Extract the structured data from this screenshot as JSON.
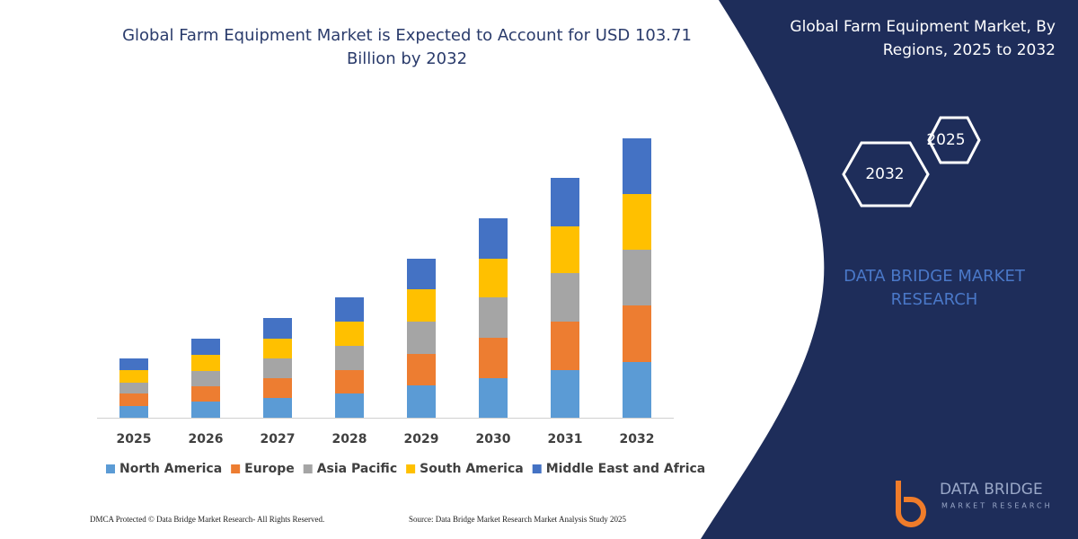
{
  "chart_data": {
    "type": "stacked-bar",
    "title": "Global Farm Equipment Market is Expected to Account for USD 103.71 Billion by 2032",
    "categories": [
      "2025",
      "2026",
      "2027",
      "2028",
      "2029",
      "2030",
      "2031",
      "2032"
    ],
    "series": [
      {
        "name": "North America",
        "color": "#5b9bd5",
        "values": [
          13,
          18,
          22,
          27,
          36,
          44,
          53,
          62
        ]
      },
      {
        "name": "Europe",
        "color": "#ed7d31",
        "values": [
          14,
          17,
          22,
          26,
          35,
          45,
          54,
          63
        ]
      },
      {
        "name": "Asia Pacific",
        "color": "#a5a5a5",
        "values": [
          12,
          17,
          22,
          27,
          36,
          45,
          54,
          62
        ]
      },
      {
        "name": "South America",
        "color": "#ffc000",
        "values": [
          14,
          18,
          22,
          27,
          36,
          43,
          52,
          62
        ]
      },
      {
        "name": "Middle East and Africa",
        "color": "#4472c4",
        "values": [
          13,
          18,
          23,
          27,
          34,
          45,
          54,
          62
        ]
      }
    ],
    "ylim": [
      0,
      320
    ],
    "legend": "bottom"
  },
  "panel": {
    "title": "Global Farm Equipment Market, By Regions, 2025 to 2032",
    "hex_back": "2025",
    "hex_front": "2032",
    "brand": "DATA BRIDGE MARKET RESEARCH",
    "logo_top": "DATA BRIDGE",
    "logo_bottom": "MARKET RESEARCH"
  },
  "footer": {
    "left": "DMCA Protected © Data Bridge Market Research- All Rights Reserved.",
    "right": "Source: Data Bridge Market Research Market Analysis Study 2025"
  }
}
